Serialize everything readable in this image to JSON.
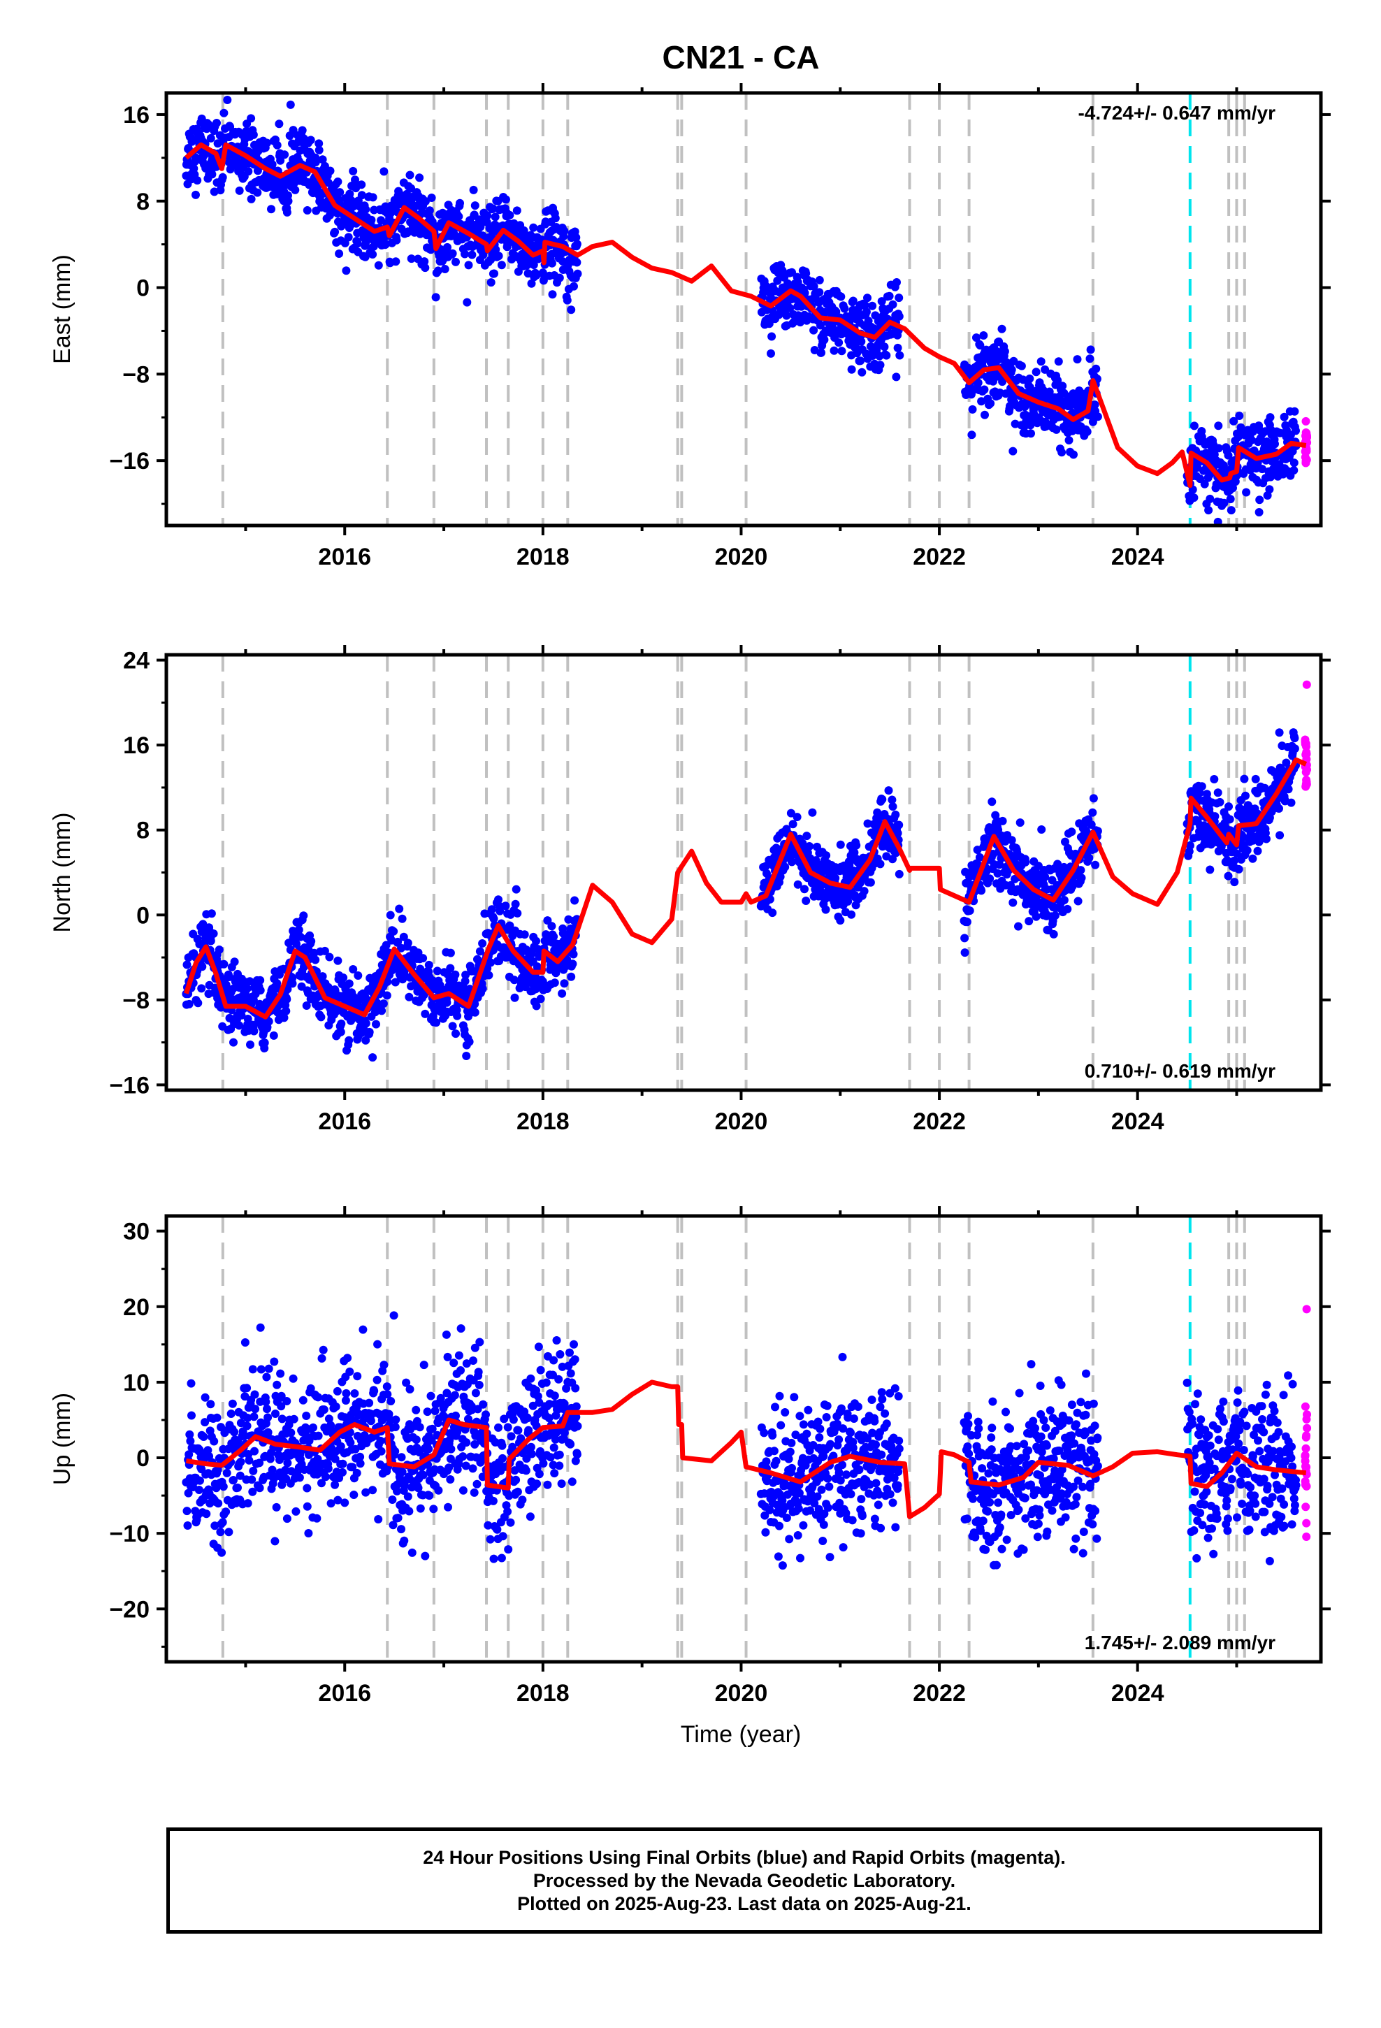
{
  "title": "CN21 - CA",
  "xlabel": "Time (year)",
  "footer": {
    "line1": "24 Hour Positions Using Final Orbits (blue) and Rapid Orbits (magenta).",
    "line2": "Processed by the Nevada Geodetic Laboratory.",
    "line3": "Plotted on 2025-Aug-23. Last data on 2025-Aug-21."
  },
  "colors": {
    "final": "#0000ff",
    "rapid": "#ff00ff",
    "model": "#ff0000",
    "equipment_change": "#c0c0c0",
    "earthquake": "#00e5ee"
  },
  "chart_data": [
    {
      "type": "scatter",
      "ylabel": "East (mm)",
      "rate": "-4.724+/- 0.647 mm/yr",
      "rate_position": "top-right",
      "xlim": [
        2014.2,
        2025.85
      ],
      "ylim": [
        -22,
        18
      ],
      "yticks": [
        16,
        8,
        0,
        -8,
        -16
      ],
      "yticklabels": [
        "16",
        "8",
        "0",
        "−8",
        "−16"
      ],
      "xticks": [
        2016,
        2018,
        2020,
        2022,
        2024
      ],
      "xticklabels": [
        "2016",
        "2018",
        "2020",
        "2022",
        "2024"
      ],
      "grid": false,
      "data_segments": [
        [
          2014.4,
          2018.35
        ],
        [
          2020.2,
          2021.6
        ],
        [
          2022.25,
          2023.6
        ],
        [
          2024.5,
          2025.6
        ]
      ],
      "model_line": [
        [
          2014.4,
          12.0
        ],
        [
          2014.55,
          13.2
        ],
        [
          2014.7,
          12.4
        ],
        [
          2014.76,
          11.0
        ],
        [
          2014.8,
          13.2
        ],
        [
          2015.0,
          12.2
        ],
        [
          2015.2,
          11.0
        ],
        [
          2015.35,
          10.3
        ],
        [
          2015.55,
          11.3
        ],
        [
          2015.7,
          10.7
        ],
        [
          2015.9,
          7.6
        ],
        [
          2016.1,
          6.4
        ],
        [
          2016.3,
          5.2
        ],
        [
          2016.43,
          5.6
        ],
        [
          2016.45,
          4.8
        ],
        [
          2016.6,
          7.4
        ],
        [
          2016.75,
          6.4
        ],
        [
          2016.9,
          5.2
        ],
        [
          2016.92,
          3.6
        ],
        [
          2017.05,
          6.0
        ],
        [
          2017.25,
          5.0
        ],
        [
          2017.43,
          4.0
        ],
        [
          2017.44,
          3.4
        ],
        [
          2017.6,
          5.3
        ],
        [
          2017.75,
          4.3
        ],
        [
          2017.9,
          3.0
        ],
        [
          2018.0,
          3.4
        ],
        [
          2018.01,
          2.3
        ],
        [
          2018.02,
          4.2
        ],
        [
          2018.2,
          3.8
        ],
        [
          2018.35,
          3.0
        ],
        [
          2018.5,
          3.8
        ],
        [
          2018.7,
          4.2
        ],
        [
          2018.9,
          2.8
        ],
        [
          2019.1,
          1.8
        ],
        [
          2019.3,
          1.4
        ],
        [
          2019.5,
          0.6
        ],
        [
          2019.7,
          2.0
        ],
        [
          2019.9,
          -0.3
        ],
        [
          2020.1,
          -0.8
        ],
        [
          2020.3,
          -1.7
        ],
        [
          2020.5,
          -0.3
        ],
        [
          2020.6,
          -0.8
        ],
        [
          2020.8,
          -2.8
        ],
        [
          2021.0,
          -3.0
        ],
        [
          2021.2,
          -4.2
        ],
        [
          2021.35,
          -4.6
        ],
        [
          2021.5,
          -3.2
        ],
        [
          2021.65,
          -3.8
        ],
        [
          2021.85,
          -5.6
        ],
        [
          2022.0,
          -6.4
        ],
        [
          2022.15,
          -7.0
        ],
        [
          2022.3,
          -8.8
        ],
        [
          2022.45,
          -7.6
        ],
        [
          2022.6,
          -7.4
        ],
        [
          2022.8,
          -9.8
        ],
        [
          2023.0,
          -10.6
        ],
        [
          2023.2,
          -11.2
        ],
        [
          2023.35,
          -12.2
        ],
        [
          2023.5,
          -11.4
        ],
        [
          2023.55,
          -8.6
        ],
        [
          2023.6,
          -9.8
        ],
        [
          2023.8,
          -14.8
        ],
        [
          2024.0,
          -16.5
        ],
        [
          2024.2,
          -17.2
        ],
        [
          2024.35,
          -16.2
        ],
        [
          2024.45,
          -15.2
        ],
        [
          2024.53,
          -18.3
        ],
        [
          2024.54,
          -15.3
        ],
        [
          2024.7,
          -16.2
        ],
        [
          2024.85,
          -17.8
        ],
        [
          2024.93,
          -17.6
        ],
        [
          2024.94,
          -17.2
        ],
        [
          2025.0,
          -17.0
        ],
        [
          2025.02,
          -14.8
        ],
        [
          2025.2,
          -15.8
        ],
        [
          2025.4,
          -15.4
        ],
        [
          2025.55,
          -14.4
        ],
        [
          2025.7,
          -14.6
        ]
      ],
      "equipment_changes": [
        2014.77,
        2016.43,
        2016.9,
        2017.43,
        2017.65,
        2018.0,
        2018.25,
        2019.36,
        2019.4,
        2020.05,
        2021.7,
        2022.0,
        2022.3,
        2023.55,
        2024.92,
        2025.0,
        2025.08
      ],
      "earthquakes": [
        2024.53
      ]
    },
    {
      "type": "scatter",
      "ylabel": "North (mm)",
      "rate": "0.710+/- 0.619 mm/yr",
      "rate_position": "bottom-right",
      "xlim": [
        2014.2,
        2025.85
      ],
      "ylim": [
        -16.5,
        24.5
      ],
      "yticks": [
        24,
        16,
        8,
        0,
        -8,
        -16
      ],
      "yticklabels": [
        "24",
        "16",
        "8",
        "0",
        "−8",
        "−16"
      ],
      "xticks": [
        2016,
        2018,
        2020,
        2022,
        2024
      ],
      "xticklabels": [
        "2016",
        "2018",
        "2020",
        "2022",
        "2024"
      ],
      "grid": false,
      "data_segments": [
        [
          2014.4,
          2018.35
        ],
        [
          2020.2,
          2021.6
        ],
        [
          2022.25,
          2023.6
        ],
        [
          2024.5,
          2025.6
        ]
      ],
      "model_line": [
        [
          2014.4,
          -7.4
        ],
        [
          2014.5,
          -4.5
        ],
        [
          2014.6,
          -3.0
        ],
        [
          2014.7,
          -5.5
        ],
        [
          2014.8,
          -8.6
        ],
        [
          2015.0,
          -8.6
        ],
        [
          2015.2,
          -9.6
        ],
        [
          2015.35,
          -7.5
        ],
        [
          2015.5,
          -3.4
        ],
        [
          2015.6,
          -4.0
        ],
        [
          2015.8,
          -7.8
        ],
        [
          2016.0,
          -8.6
        ],
        [
          2016.2,
          -9.4
        ],
        [
          2016.35,
          -6.8
        ],
        [
          2016.5,
          -3.2
        ],
        [
          2016.7,
          -5.6
        ],
        [
          2016.9,
          -7.8
        ],
        [
          2017.05,
          -7.4
        ],
        [
          2017.25,
          -8.6
        ],
        [
          2017.45,
          -3.2
        ],
        [
          2017.55,
          -1.0
        ],
        [
          2017.7,
          -3.4
        ],
        [
          2017.9,
          -5.4
        ],
        [
          2018.0,
          -5.4
        ],
        [
          2018.01,
          -3.4
        ],
        [
          2018.15,
          -4.4
        ],
        [
          2018.3,
          -2.8
        ],
        [
          2018.5,
          2.8
        ],
        [
          2018.7,
          1.2
        ],
        [
          2018.9,
          -1.8
        ],
        [
          2019.1,
          -2.6
        ],
        [
          2019.3,
          -0.4
        ],
        [
          2019.36,
          4.0
        ],
        [
          2019.5,
          6.0
        ],
        [
          2019.65,
          3.0
        ],
        [
          2019.8,
          1.2
        ],
        [
          2020.0,
          1.2
        ],
        [
          2020.05,
          2.0
        ],
        [
          2020.1,
          1.2
        ],
        [
          2020.25,
          1.8
        ],
        [
          2020.5,
          7.6
        ],
        [
          2020.7,
          4.0
        ],
        [
          2020.9,
          3.0
        ],
        [
          2021.1,
          2.6
        ],
        [
          2021.3,
          5.2
        ],
        [
          2021.45,
          8.8
        ],
        [
          2021.6,
          6.2
        ],
        [
          2021.7,
          4.2
        ],
        [
          2021.71,
          4.4
        ],
        [
          2022.0,
          4.4
        ],
        [
          2022.01,
          2.4
        ],
        [
          2022.3,
          1.2
        ],
        [
          2022.55,
          7.4
        ],
        [
          2022.75,
          4.2
        ],
        [
          2022.95,
          2.4
        ],
        [
          2023.15,
          1.4
        ],
        [
          2023.35,
          4.2
        ],
        [
          2023.55,
          7.8
        ],
        [
          2023.75,
          3.6
        ],
        [
          2023.95,
          2.0
        ],
        [
          2024.2,
          1.0
        ],
        [
          2024.4,
          4.0
        ],
        [
          2024.53,
          8.6
        ],
        [
          2024.54,
          11.0
        ],
        [
          2024.7,
          9.2
        ],
        [
          2024.9,
          6.8
        ],
        [
          2024.92,
          7.6
        ],
        [
          2025.0,
          6.6
        ],
        [
          2025.02,
          8.4
        ],
        [
          2025.2,
          8.6
        ],
        [
          2025.4,
          11.4
        ],
        [
          2025.6,
          14.6
        ],
        [
          2025.7,
          14.2
        ]
      ],
      "equipment_changes": [
        2014.77,
        2016.43,
        2016.9,
        2017.43,
        2017.65,
        2018.0,
        2018.25,
        2019.36,
        2019.4,
        2020.05,
        2021.7,
        2022.0,
        2022.3,
        2023.55,
        2024.92,
        2025.0,
        2025.08
      ],
      "earthquakes": [
        2024.53
      ]
    },
    {
      "type": "scatter",
      "ylabel": "Up (mm)",
      "rate": "1.745+/- 2.089 mm/yr",
      "rate_position": "bottom-right",
      "xlim": [
        2014.2,
        2025.85
      ],
      "ylim": [
        -27,
        32
      ],
      "yticks": [
        30,
        20,
        10,
        0,
        -10,
        -20
      ],
      "yticklabels": [
        "30",
        "20",
        "10",
        "0",
        "−10",
        "−20"
      ],
      "xticks": [
        2016,
        2018,
        2020,
        2022,
        2024
      ],
      "xticklabels": [
        "2016",
        "2018",
        "2020",
        "2022",
        "2024"
      ],
      "grid": false,
      "data_segments": [
        [
          2014.4,
          2018.35
        ],
        [
          2020.2,
          2021.6
        ],
        [
          2022.25,
          2023.6
        ],
        [
          2024.5,
          2025.6
        ]
      ],
      "model_line": [
        [
          2014.4,
          -0.4
        ],
        [
          2014.6,
          -0.8
        ],
        [
          2014.76,
          -1.0
        ],
        [
          2014.95,
          1.0
        ],
        [
          2015.1,
          2.8
        ],
        [
          2015.3,
          1.8
        ],
        [
          2015.55,
          1.4
        ],
        [
          2015.75,
          1.0
        ],
        [
          2015.95,
          3.4
        ],
        [
          2016.1,
          4.4
        ],
        [
          2016.3,
          3.4
        ],
        [
          2016.43,
          4.0
        ],
        [
          2016.45,
          -0.8
        ],
        [
          2016.7,
          -1.2
        ],
        [
          2016.9,
          0.4
        ],
        [
          2017.05,
          5.0
        ],
        [
          2017.2,
          4.4
        ],
        [
          2017.43,
          4.0
        ],
        [
          2017.44,
          -3.6
        ],
        [
          2017.65,
          -4.0
        ],
        [
          2017.66,
          -0.2
        ],
        [
          2017.85,
          2.4
        ],
        [
          2018.0,
          4.0
        ],
        [
          2018.2,
          4.2
        ],
        [
          2018.25,
          6.0
        ],
        [
          2018.5,
          6.0
        ],
        [
          2018.7,
          6.4
        ],
        [
          2018.9,
          8.4
        ],
        [
          2019.1,
          10.0
        ],
        [
          2019.3,
          9.4
        ],
        [
          2019.36,
          9.4
        ],
        [
          2019.37,
          4.4
        ],
        [
          2019.4,
          4.4
        ],
        [
          2019.41,
          0.0
        ],
        [
          2019.7,
          -0.4
        ],
        [
          2019.9,
          2.0
        ],
        [
          2020.0,
          3.4
        ],
        [
          2020.05,
          -1.2
        ],
        [
          2020.3,
          -2.0
        ],
        [
          2020.6,
          -3.2
        ],
        [
          2020.9,
          -0.6
        ],
        [
          2021.1,
          0.2
        ],
        [
          2021.4,
          -0.6
        ],
        [
          2021.65,
          -0.8
        ],
        [
          2021.7,
          -7.8
        ],
        [
          2021.85,
          -6.6
        ],
        [
          2022.0,
          -4.8
        ],
        [
          2022.02,
          0.8
        ],
        [
          2022.15,
          0.4
        ],
        [
          2022.3,
          -0.6
        ],
        [
          2022.32,
          -3.2
        ],
        [
          2022.6,
          -3.6
        ],
        [
          2022.85,
          -2.6
        ],
        [
          2023.0,
          -0.6
        ],
        [
          2023.3,
          -1.0
        ],
        [
          2023.55,
          -2.4
        ],
        [
          2023.75,
          -1.2
        ],
        [
          2023.95,
          0.6
        ],
        [
          2024.2,
          0.8
        ],
        [
          2024.4,
          0.4
        ],
        [
          2024.53,
          0.2
        ],
        [
          2024.54,
          -3.4
        ],
        [
          2024.7,
          -3.8
        ],
        [
          2024.85,
          -2.0
        ],
        [
          2025.0,
          0.6
        ],
        [
          2025.2,
          -1.2
        ],
        [
          2025.4,
          -1.6
        ],
        [
          2025.7,
          -2.0
        ]
      ],
      "equipment_changes": [
        2014.77,
        2016.43,
        2016.9,
        2017.43,
        2017.65,
        2018.0,
        2018.25,
        2019.36,
        2019.4,
        2020.05,
        2021.7,
        2022.0,
        2022.3,
        2023.55,
        2024.92,
        2025.0,
        2025.08
      ],
      "earthquakes": [
        2024.53
      ]
    }
  ]
}
